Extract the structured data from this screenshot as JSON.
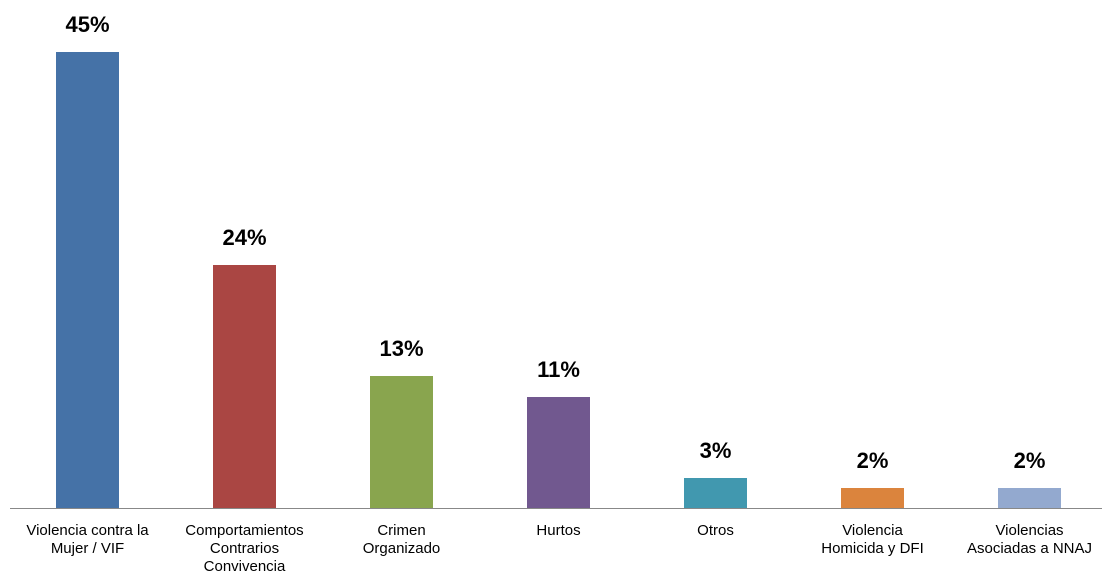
{
  "chart_data": {
    "type": "bar",
    "categories": [
      "Violencia contra la\nMujer / VIF",
      "Comportamientos\nContrarios\nConvivencia",
      "Crimen\nOrganizado",
      "Hurtos",
      "Otros",
      "Violencia\nHomicida y DFI",
      "Violencias\nAsociadas a NNAJ"
    ],
    "values": [
      45,
      24,
      13,
      11,
      3,
      2,
      2
    ],
    "value_labels": [
      "45%",
      "24%",
      "13%",
      "11%",
      "3%",
      "2%",
      "2%"
    ],
    "colors": [
      "#4572a7",
      "#aa4643",
      "#89a54e",
      "#71588f",
      "#4198af",
      "#db843d",
      "#93a9cf"
    ]
  }
}
